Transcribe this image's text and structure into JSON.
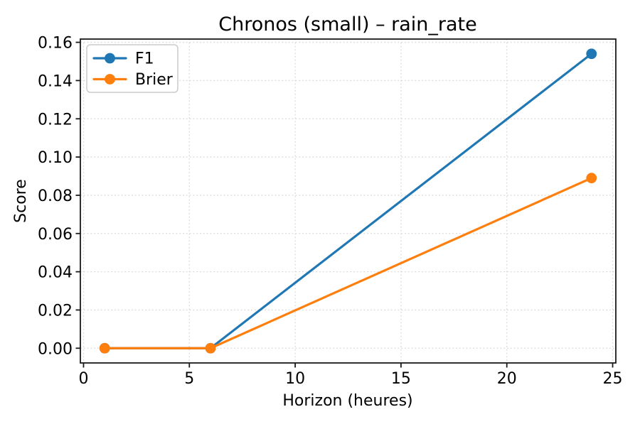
{
  "chart_data": {
    "type": "line",
    "title": "Chronos (small) – rain_rate",
    "xlabel": "Horizon (heures)",
    "ylabel": "Score",
    "x": [
      1,
      6,
      24
    ],
    "series": [
      {
        "name": "F1",
        "color": "#1f77b4",
        "values": [
          0.0,
          0.0,
          0.154
        ]
      },
      {
        "name": "Brier",
        "color": "#ff7f0e",
        "values": [
          0.0,
          0.0,
          0.089
        ]
      }
    ],
    "xticks": [
      0,
      5,
      10,
      15,
      20,
      25
    ],
    "xtick_labels": [
      "0",
      "5",
      "10",
      "15",
      "20",
      "25"
    ],
    "yticks": [
      0.0,
      0.02,
      0.04,
      0.06,
      0.08,
      0.1,
      0.12,
      0.14,
      0.16
    ],
    "ytick_labels": [
      "0.00",
      "0.02",
      "0.04",
      "0.06",
      "0.08",
      "0.10",
      "0.12",
      "0.14",
      "0.16"
    ],
    "xlim": [
      -0.15,
      25.15
    ],
    "ylim": [
      -0.0077,
      0.1617
    ],
    "grid": true,
    "grid_style": "dotted",
    "legend": {
      "position": "upper left",
      "entries": [
        "F1",
        "Brier"
      ]
    }
  },
  "style": {
    "background": "#ffffff",
    "grid_color": "#d9d9d9",
    "axis_color": "#1a1a1a",
    "text_color": "#000000",
    "legend_border_color": "#cccccc"
  }
}
